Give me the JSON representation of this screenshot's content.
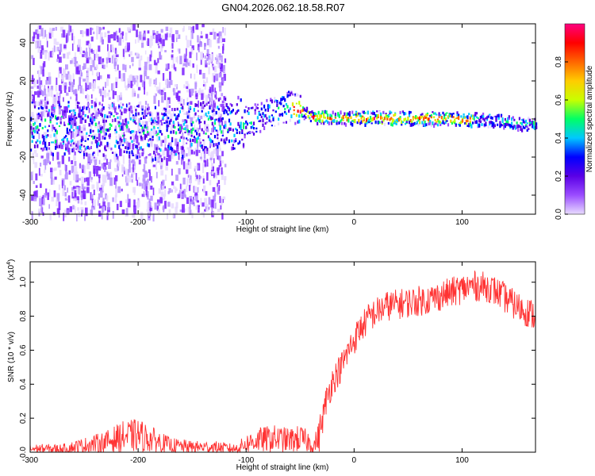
{
  "title": "GN04.2026.062.18.58.R07",
  "chart_data": [
    {
      "type": "heatmap",
      "name": "spectrogram",
      "xlabel": "Height of straight line (km)",
      "ylabel": "Frequency (Hz)",
      "xlim": [
        -300,
        168
      ],
      "ylim": [
        -50,
        50
      ],
      "x_ticks": [
        -300,
        -200,
        -100,
        0,
        100
      ],
      "y_ticks": [
        -40,
        -20,
        0,
        20,
        40
      ],
      "colorbar": {
        "label": "Normalized spectral amplitude",
        "range": [
          0,
          1
        ],
        "ticks": [
          "0.0",
          "0.2",
          "0.4",
          "0.6",
          "0.8"
        ],
        "colormap": [
          "#e8dcff",
          "#9b4dff",
          "#5a00e6",
          "#0000ff",
          "#00c8ff",
          "#00ff66",
          "#c8ff00",
          "#ffcc00",
          "#ff6600",
          "#ff0000",
          "#ff0080"
        ]
      },
      "ridge": [
        {
          "x": -260,
          "y": -5
        },
        {
          "x": -220,
          "y": -5
        },
        {
          "x": -180,
          "y": -8
        },
        {
          "x": -140,
          "y": -4
        },
        {
          "x": -110,
          "y": -2
        },
        {
          "x": -90,
          "y": 0
        },
        {
          "x": -75,
          "y": 4
        },
        {
          "x": -60,
          "y": 7
        },
        {
          "x": -50,
          "y": 4
        },
        {
          "x": -40,
          "y": 1
        },
        {
          "x": 0,
          "y": 0.5
        },
        {
          "x": 50,
          "y": 0.5
        },
        {
          "x": 100,
          "y": 0
        },
        {
          "x": 130,
          "y": -1
        },
        {
          "x": 168,
          "y": -3
        }
      ],
      "high_amplitude_range": [
        -60,
        110
      ]
    },
    {
      "type": "line",
      "name": "snr",
      "xlabel": "Height of straight line (km)",
      "ylabel": "SNR (10 * v/v)",
      "y_multiplier": "(x10",
      "y_multiplier_exp": "4",
      "y_multiplier_close": ")",
      "xlim": [
        -300,
        168
      ],
      "ylim": [
        0,
        1.12
      ],
      "x_ticks": [
        -300,
        -200,
        -100,
        0,
        100
      ],
      "y_ticks": [
        "0.0",
        "0.2",
        "0.4",
        "0.6",
        "0.8",
        "1.0"
      ],
      "color": "#ff3333",
      "x": [
        -300,
        -270,
        -250,
        -230,
        -215,
        -200,
        -185,
        -170,
        -150,
        -130,
        -110,
        -100,
        -90,
        -75,
        -60,
        -50,
        -42,
        -38,
        -32,
        -26,
        -20,
        -12,
        -5,
        0,
        5,
        15,
        30,
        50,
        70,
        90,
        110,
        125,
        135,
        150,
        168
      ],
      "y": [
        0.02,
        0.02,
        0.04,
        0.06,
        0.09,
        0.1,
        0.07,
        0.04,
        0.03,
        0.03,
        0.02,
        0.05,
        0.07,
        0.08,
        0.07,
        0.08,
        0.06,
        0.03,
        0.1,
        0.3,
        0.42,
        0.5,
        0.6,
        0.66,
        0.72,
        0.8,
        0.86,
        0.88,
        0.9,
        0.94,
        0.98,
        0.97,
        0.93,
        0.86,
        0.8
      ]
    }
  ]
}
